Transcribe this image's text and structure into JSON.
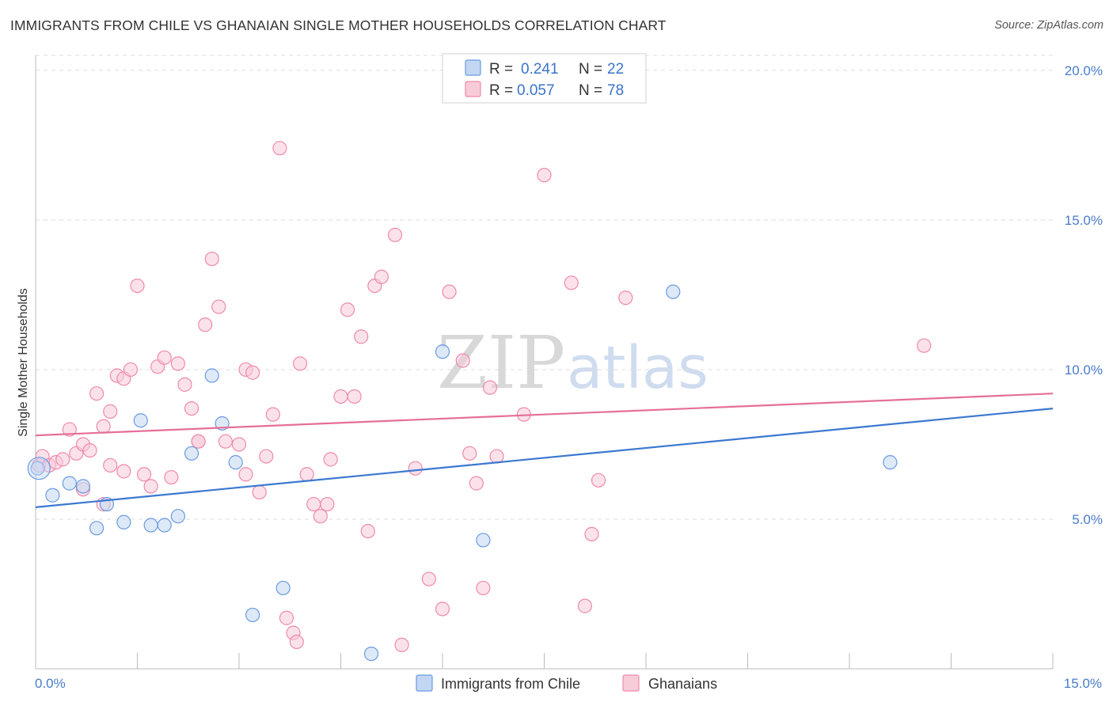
{
  "title": "IMMIGRANTS FROM CHILE VS GHANAIAN SINGLE MOTHER HOUSEHOLDS CORRELATION CHART",
  "source": "Source: ZipAtlas.com",
  "watermark": {
    "part1": "ZIP",
    "part2": "atlas"
  },
  "colors": {
    "chile": "#6a9be0",
    "chile_fill": "#c3d7f3",
    "ghana": "#ee8aaa",
    "ghana_fill": "#f8cbd9",
    "chile_line": "#3c78d0",
    "ghana_line": "#e56f96",
    "grid": "#dddddd",
    "axis_text": "#4a7cc9"
  },
  "legend": {
    "rows": [
      {
        "r_label": "R =",
        "r_value": "0.241",
        "n_label": "N =",
        "n_value": "22"
      },
      {
        "r_label": "R =",
        "r_value": "0.057",
        "n_label": "N =",
        "n_value": "78"
      }
    ]
  },
  "bottom_legend": [
    "Immigrants from Chile",
    "Ghanaians"
  ],
  "chart_data": {
    "type": "scatter",
    "title": "IMMIGRANTS FROM CHILE VS GHANAIAN SINGLE MOTHER HOUSEHOLDS CORRELATION CHART",
    "xlabel": "",
    "ylabel": "Single Mother Households",
    "xlim": [
      0,
      15
    ],
    "ylim": [
      0,
      20.5
    ],
    "x_tick_labels": [
      "0.0%",
      "15.0%"
    ],
    "y_ticks": [
      5,
      10,
      15,
      20
    ],
    "y_tick_labels": [
      "5.0%",
      "10.0%",
      "15.0%",
      "20.0%"
    ],
    "grid": true,
    "legend_position": "top-center",
    "series": [
      {
        "name": "Immigrants from Chile",
        "R": 0.241,
        "N": 22,
        "trend": {
          "x": [
            0,
            15
          ],
          "y": [
            5.4,
            8.7
          ]
        },
        "points": [
          [
            0.03,
            6.7
          ],
          [
            0.25,
            5.8
          ],
          [
            0.5,
            6.2
          ],
          [
            0.7,
            6.1
          ],
          [
            0.9,
            4.7
          ],
          [
            1.3,
            4.9
          ],
          [
            1.55,
            8.3
          ],
          [
            1.7,
            4.8
          ],
          [
            1.9,
            4.8
          ],
          [
            2.1,
            5.1
          ],
          [
            2.3,
            7.2
          ],
          [
            2.6,
            9.8
          ],
          [
            2.75,
            8.2
          ],
          [
            2.95,
            6.9
          ],
          [
            3.2,
            1.8
          ],
          [
            3.65,
            2.7
          ],
          [
            4.95,
            0.5
          ],
          [
            6.0,
            10.6
          ],
          [
            6.6,
            4.3
          ],
          [
            9.4,
            12.6
          ],
          [
            12.6,
            6.9
          ],
          [
            1.05,
            5.5
          ]
        ]
      },
      {
        "name": "Ghanaians",
        "R": 0.057,
        "N": 78,
        "trend": {
          "x": [
            0,
            15
          ],
          "y": [
            7.8,
            9.2
          ]
        },
        "points": [
          [
            0.05,
            6.8
          ],
          [
            0.1,
            7.1
          ],
          [
            0.2,
            6.8
          ],
          [
            0.3,
            6.9
          ],
          [
            0.4,
            7.0
          ],
          [
            0.5,
            8.0
          ],
          [
            0.6,
            7.2
          ],
          [
            0.7,
            7.5
          ],
          [
            0.8,
            7.3
          ],
          [
            0.9,
            9.2
          ],
          [
            1.0,
            8.1
          ],
          [
            1.1,
            8.6
          ],
          [
            1.2,
            9.8
          ],
          [
            1.3,
            9.7
          ],
          [
            1.4,
            10.0
          ],
          [
            1.5,
            12.8
          ],
          [
            1.6,
            6.5
          ],
          [
            1.7,
            6.1
          ],
          [
            1.8,
            10.1
          ],
          [
            1.9,
            10.4
          ],
          [
            2.0,
            6.4
          ],
          [
            2.1,
            10.2
          ],
          [
            2.2,
            9.5
          ],
          [
            2.3,
            8.7
          ],
          [
            2.4,
            7.6
          ],
          [
            2.5,
            11.5
          ],
          [
            2.6,
            13.7
          ],
          [
            2.7,
            12.1
          ],
          [
            2.8,
            7.6
          ],
          [
            3.0,
            7.5
          ],
          [
            3.1,
            10.0
          ],
          [
            3.2,
            9.9
          ],
          [
            3.3,
            5.9
          ],
          [
            3.4,
            7.1
          ],
          [
            3.5,
            8.5
          ],
          [
            3.6,
            17.4
          ],
          [
            3.7,
            1.7
          ],
          [
            3.8,
            1.2
          ],
          [
            3.85,
            0.9
          ],
          [
            3.9,
            10.2
          ],
          [
            4.0,
            6.5
          ],
          [
            4.1,
            5.5
          ],
          [
            4.2,
            5.1
          ],
          [
            4.3,
            5.5
          ],
          [
            4.35,
            7.0
          ],
          [
            4.5,
            9.1
          ],
          [
            4.6,
            12.0
          ],
          [
            4.7,
            9.1
          ],
          [
            4.8,
            11.1
          ],
          [
            4.9,
            4.6
          ],
          [
            5.0,
            12.8
          ],
          [
            5.1,
            13.1
          ],
          [
            5.3,
            14.5
          ],
          [
            5.4,
            0.8
          ],
          [
            5.6,
            6.7
          ],
          [
            5.8,
            3.0
          ],
          [
            6.0,
            2.0
          ],
          [
            6.1,
            12.6
          ],
          [
            6.3,
            10.3
          ],
          [
            6.4,
            7.2
          ],
          [
            6.5,
            6.2
          ],
          [
            6.6,
            2.7
          ],
          [
            6.7,
            9.4
          ],
          [
            6.8,
            7.1
          ],
          [
            7.2,
            8.5
          ],
          [
            7.5,
            16.5
          ],
          [
            7.9,
            12.9
          ],
          [
            8.1,
            2.1
          ],
          [
            8.2,
            4.5
          ],
          [
            8.3,
            6.3
          ],
          [
            8.7,
            12.4
          ],
          [
            13.1,
            10.8
          ],
          [
            1.0,
            5.5
          ],
          [
            1.3,
            6.6
          ],
          [
            2.4,
            7.6
          ],
          [
            3.1,
            6.5
          ],
          [
            0.7,
            6.0
          ],
          [
            1.1,
            6.8
          ]
        ]
      }
    ]
  }
}
